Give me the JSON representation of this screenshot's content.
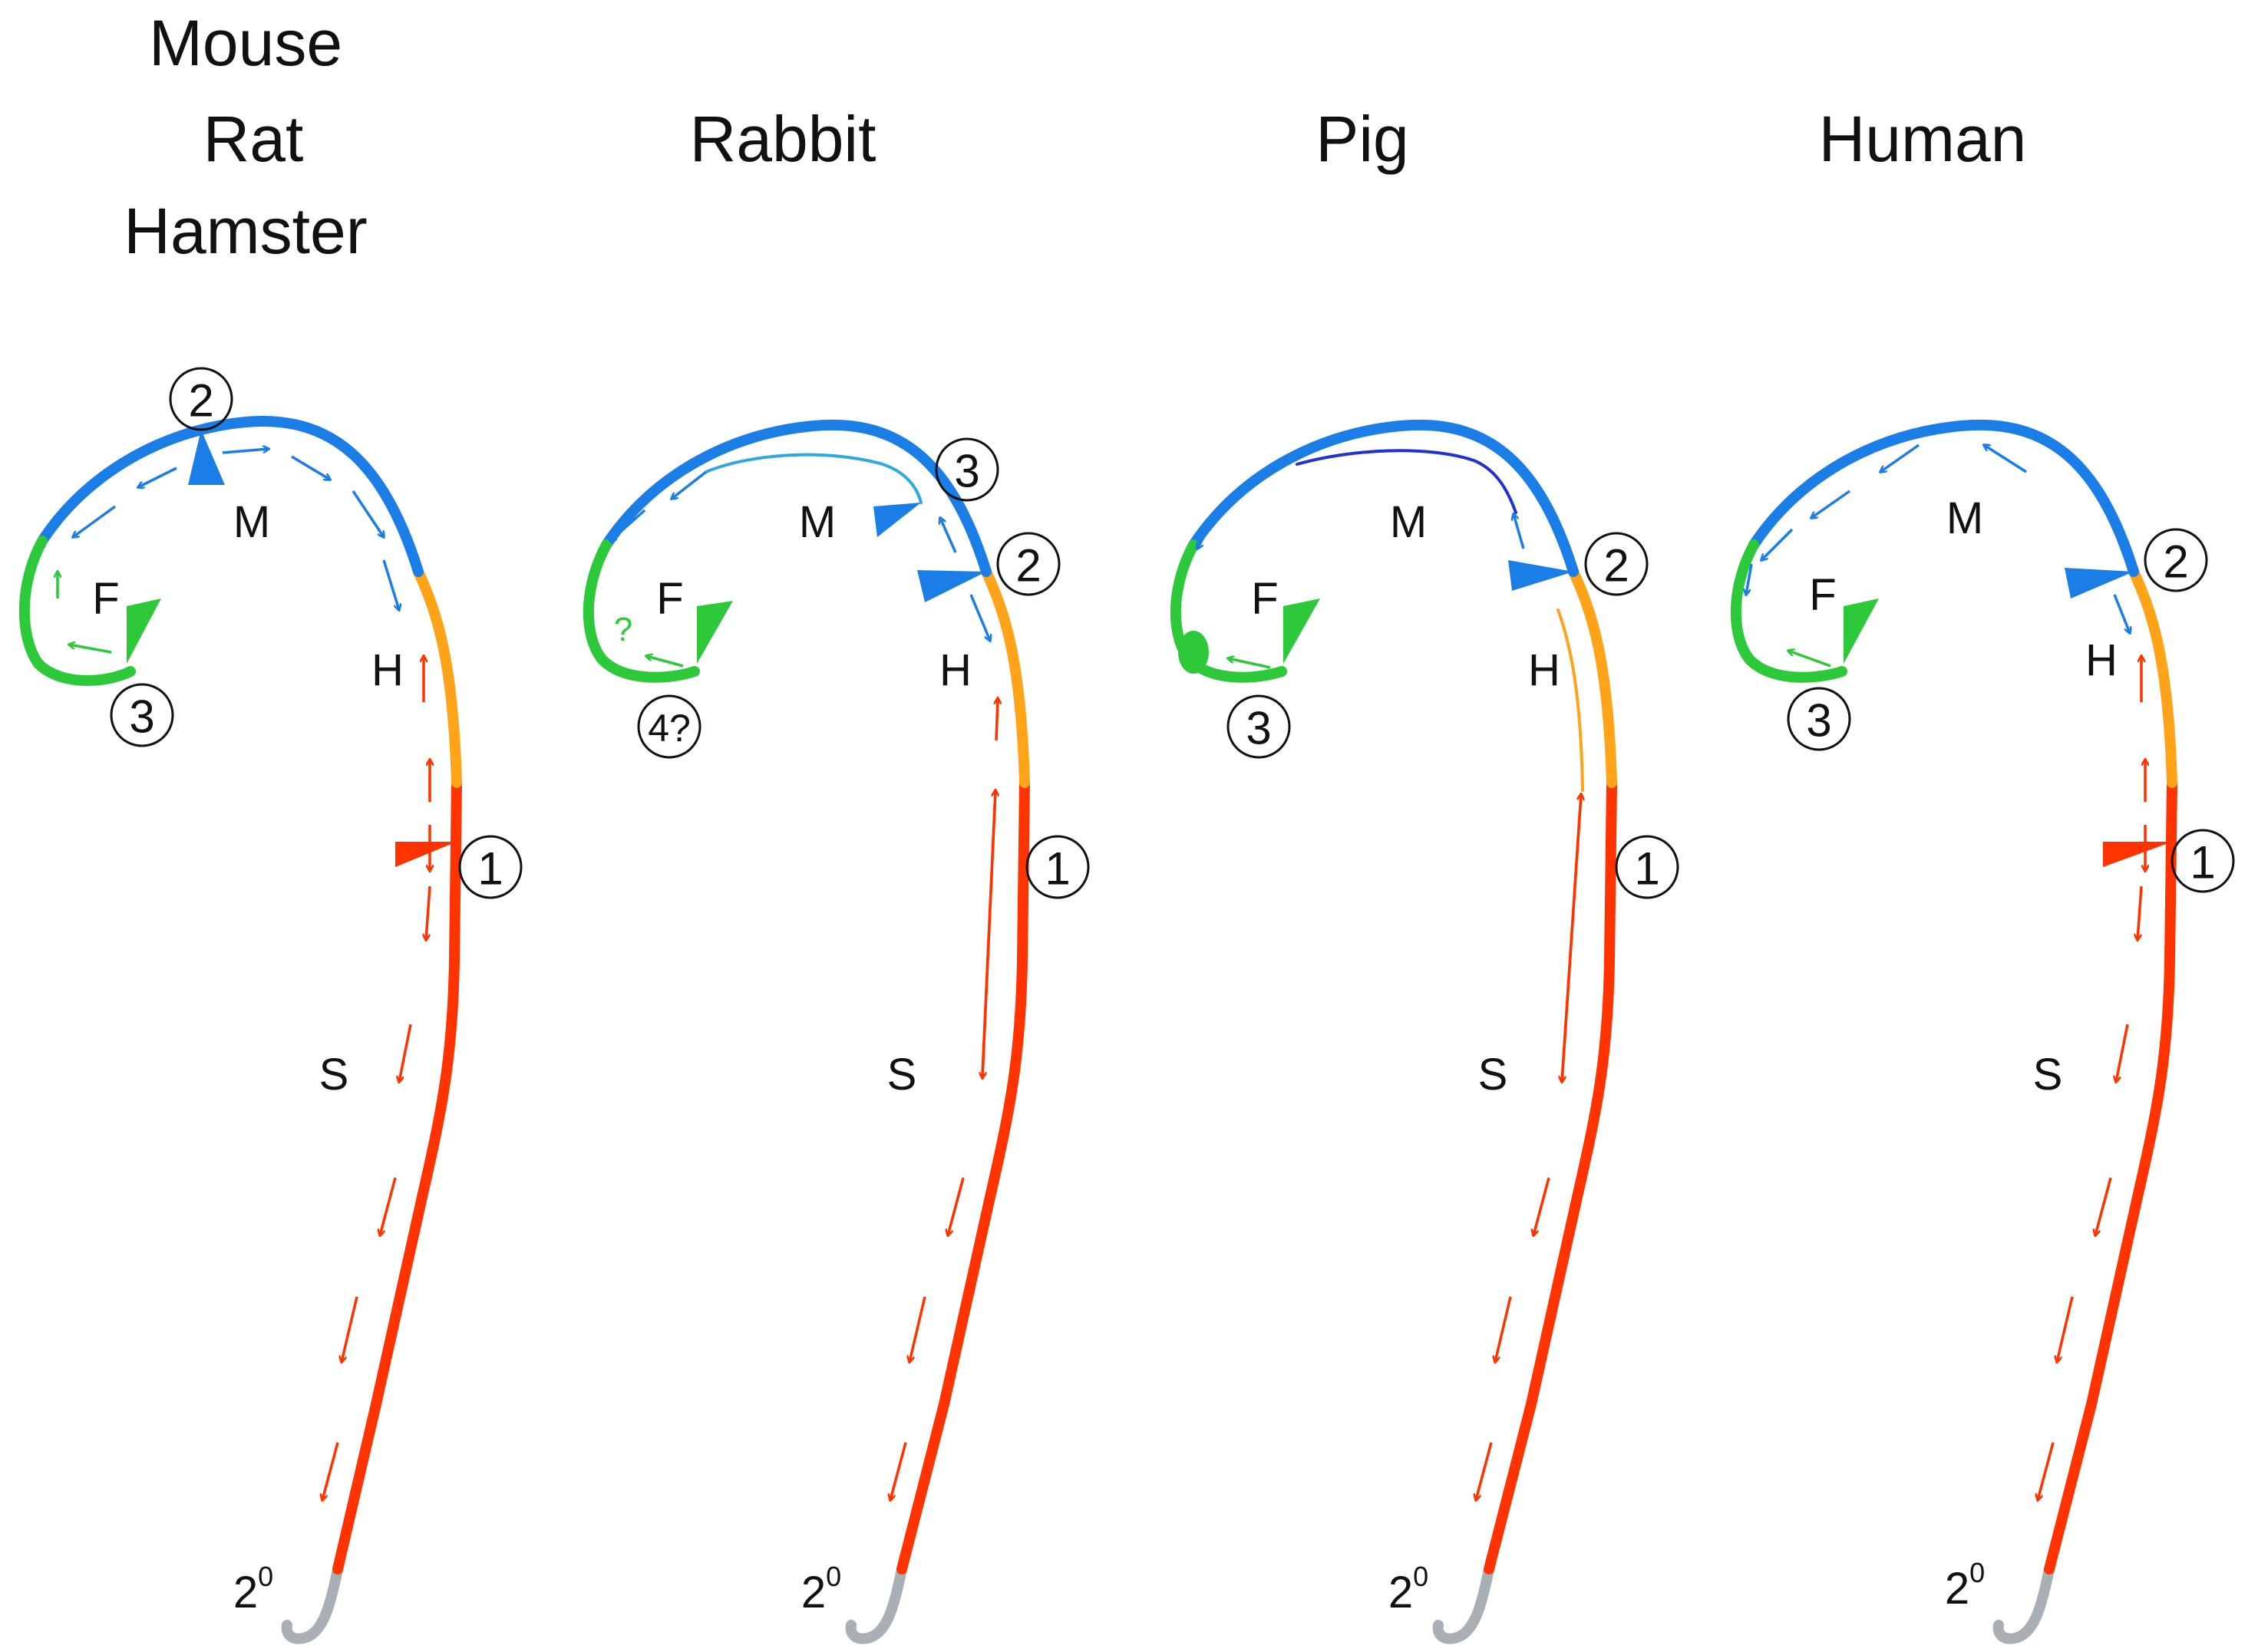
{
  "colors": {
    "segment_S": "#ff3300",
    "segment_H": "#ffa319",
    "segment_M": "#1a7ee6",
    "segment_F": "#2ec93a",
    "segment_tail": "#a8b0b5",
    "arrow_red": "#ff3300",
    "arrow_blue": "#1a7ee6",
    "arrow_green": "#2ec93a",
    "text": "#111111"
  },
  "labels": {
    "S": "S",
    "H": "H",
    "M": "M",
    "F": "F",
    "tail_base": "2",
    "tail_sup": "0"
  },
  "panels": [
    {
      "id": "mouse",
      "title_lines": [
        "Mouse",
        "Rat",
        "Hamster"
      ],
      "markers": [
        {
          "segment": "S",
          "label": "1"
        },
        {
          "segment": "M",
          "label": "2"
        },
        {
          "segment": "F",
          "label": "3"
        }
      ],
      "notes": []
    },
    {
      "id": "rabbit",
      "title_lines": [
        "Rabbit"
      ],
      "markers": [
        {
          "segment": "S",
          "label": "1"
        },
        {
          "segment": "M",
          "label": "2"
        },
        {
          "segment": "M",
          "label": "3"
        },
        {
          "segment": "F",
          "label": "4?"
        }
      ],
      "notes": [
        "?"
      ]
    },
    {
      "id": "pig",
      "title_lines": [
        "Pig"
      ],
      "markers": [
        {
          "segment": "S",
          "label": "1"
        },
        {
          "segment": "M",
          "label": "2"
        },
        {
          "segment": "F",
          "label": "3"
        }
      ],
      "notes": []
    },
    {
      "id": "human",
      "title_lines": [
        "Human"
      ],
      "markers": [
        {
          "segment": "S",
          "label": "1"
        },
        {
          "segment": "M",
          "label": "2"
        },
        {
          "segment": "F",
          "label": "3"
        }
      ],
      "notes": []
    }
  ]
}
